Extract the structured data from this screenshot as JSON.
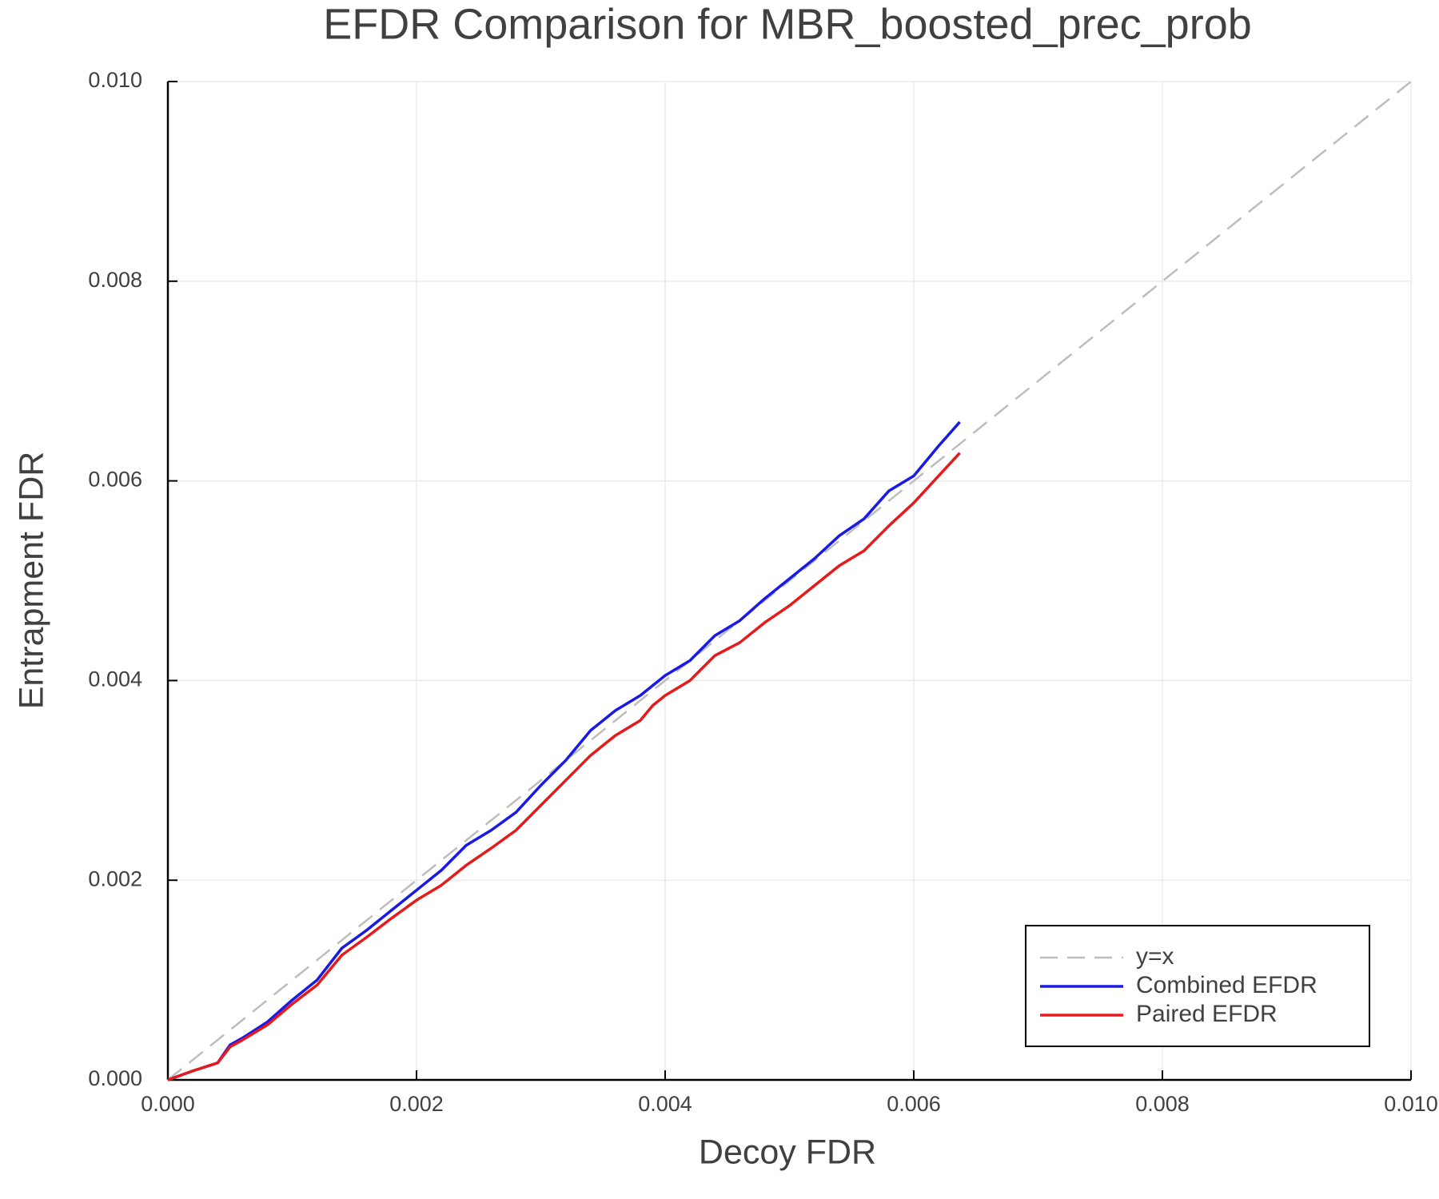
{
  "chart_data": {
    "type": "line",
    "title": "EFDR Comparison for MBR_boosted_prec_prob",
    "xlabel": "Decoy FDR",
    "ylabel": "Entrapment FDR",
    "xlim": [
      0,
      0.01
    ],
    "ylim": [
      0,
      0.01
    ],
    "xticks": [
      {
        "value": 0,
        "label": "0.000"
      },
      {
        "value": 0.002,
        "label": "0.002"
      },
      {
        "value": 0.004,
        "label": "0.004"
      },
      {
        "value": 0.006,
        "label": "0.006"
      },
      {
        "value": 0.008,
        "label": "0.008"
      },
      {
        "value": 0.01,
        "label": "0.010"
      }
    ],
    "yticks": [
      {
        "value": 0,
        "label": "0.000"
      },
      {
        "value": 0.002,
        "label": "0.002"
      },
      {
        "value": 0.004,
        "label": "0.004"
      },
      {
        "value": 0.006,
        "label": "0.006"
      },
      {
        "value": 0.008,
        "label": "0.008"
      },
      {
        "value": 0.01,
        "label": "0.010"
      }
    ],
    "grid": true,
    "legend": "bottom right",
    "series": [
      {
        "name": "y=x",
        "color": "#bdbdbd",
        "dashed": true,
        "x": [
          0,
          0.01
        ],
        "values": [
          0,
          0.01
        ]
      },
      {
        "name": "Combined EFDR",
        "color": "#1a1ae6",
        "dashed": false,
        "x": [
          0,
          0.0002,
          0.0004,
          0.0005,
          0.0006,
          0.0008,
          0.001,
          0.0012,
          0.0014,
          0.0016,
          0.0018,
          0.002,
          0.0022,
          0.0024,
          0.0026,
          0.0028,
          0.003,
          0.0032,
          0.0034,
          0.0036,
          0.0038,
          0.0039,
          0.004,
          0.0042,
          0.0044,
          0.0046,
          0.0048,
          0.005,
          0.0052,
          0.0054,
          0.0056,
          0.0058,
          0.006,
          0.0062,
          0.00637
        ],
        "values": [
          0,
          9e-05,
          0.00017,
          0.00035,
          0.00042,
          0.00058,
          0.0008,
          0.001,
          0.00132,
          0.0015,
          0.0017,
          0.0019,
          0.0021,
          0.00235,
          0.0025,
          0.00268,
          0.00295,
          0.0032,
          0.0035,
          0.0037,
          0.00385,
          0.00395,
          0.00405,
          0.0042,
          0.00445,
          0.0046,
          0.00482,
          0.00502,
          0.00522,
          0.00545,
          0.00562,
          0.0059,
          0.00605,
          0.00635,
          0.00659
        ]
      },
      {
        "name": "Paired EFDR",
        "color": "#e61a1a",
        "dashed": false,
        "x": [
          0,
          0.0002,
          0.0004,
          0.0005,
          0.0006,
          0.0008,
          0.001,
          0.0012,
          0.0014,
          0.0016,
          0.0018,
          0.002,
          0.0022,
          0.0024,
          0.0026,
          0.0028,
          0.003,
          0.0032,
          0.0034,
          0.0036,
          0.0038,
          0.0039,
          0.004,
          0.0042,
          0.0044,
          0.0046,
          0.0048,
          0.005,
          0.0052,
          0.0054,
          0.0056,
          0.0058,
          0.006,
          0.0062,
          0.00637
        ],
        "values": [
          0,
          9e-05,
          0.00017,
          0.00033,
          0.0004,
          0.00055,
          0.00076,
          0.00095,
          0.00125,
          0.00143,
          0.00162,
          0.0018,
          0.00195,
          0.00215,
          0.00232,
          0.0025,
          0.00275,
          0.003,
          0.00325,
          0.00345,
          0.0036,
          0.00375,
          0.00385,
          0.004,
          0.00425,
          0.00438,
          0.00458,
          0.00475,
          0.00495,
          0.00515,
          0.0053,
          0.00555,
          0.00578,
          0.00605,
          0.00628
        ]
      }
    ]
  }
}
